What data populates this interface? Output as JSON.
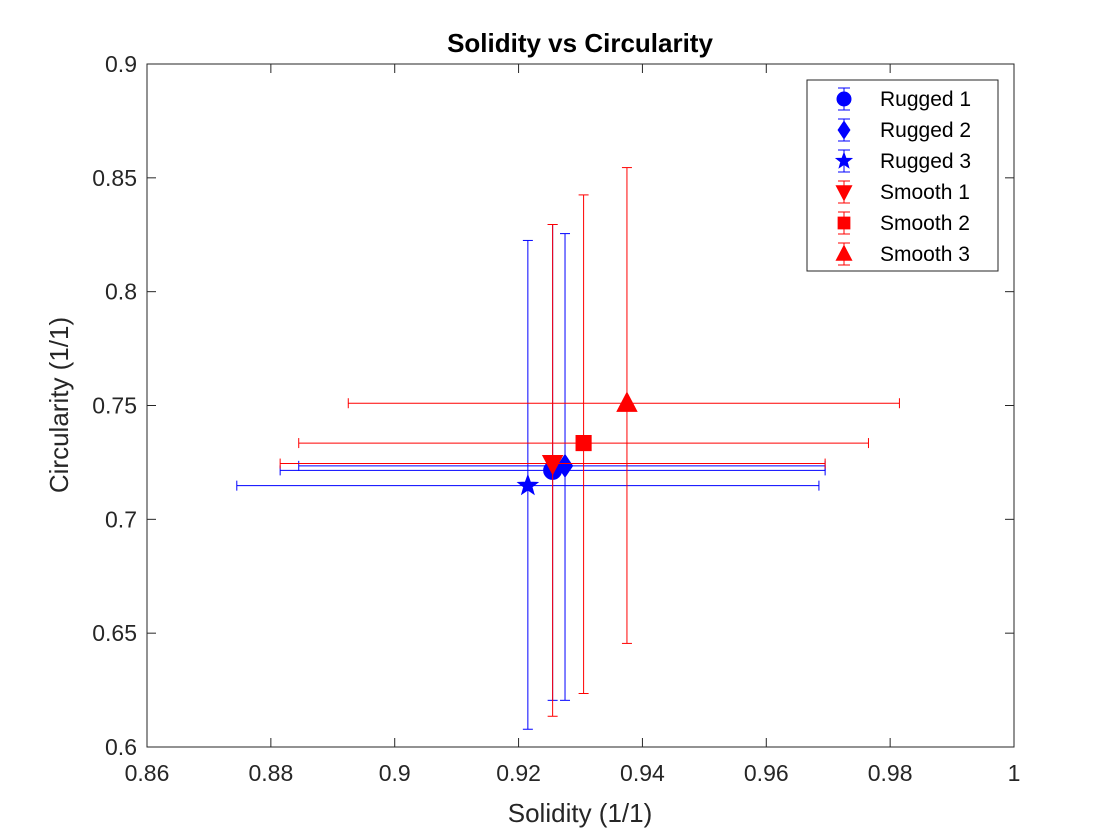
{
  "chart_data": {
    "type": "scatter",
    "title": "Solidity vs Circularity",
    "xlabel": "Solidity (1/1)",
    "ylabel": "Circularity (1/1)",
    "xlim": [
      0.86,
      1.0
    ],
    "ylim": [
      0.6,
      0.9
    ],
    "xticks": [
      "0.86",
      "0.88",
      "0.9",
      "0.92",
      "0.94",
      "0.96",
      "0.98",
      "1"
    ],
    "yticks": [
      "0.6",
      "0.65",
      "0.7",
      "0.75",
      "0.8",
      "0.85",
      "0.9"
    ],
    "xtick_values": [
      0.86,
      0.88,
      0.9,
      0.92,
      0.94,
      0.96,
      0.98,
      1.0
    ],
    "ytick_values": [
      0.6,
      0.65,
      0.7,
      0.75,
      0.8,
      0.85,
      0.9
    ],
    "grid": false,
    "legend_position": "top-right",
    "series": [
      {
        "name": "Rugged 1",
        "marker": "circle",
        "color": "#0000ff",
        "x": 0.9255,
        "y": 0.7215,
        "xerr": [
          0.8815,
          0.9695
        ],
        "yerr": [
          0.6205,
          0.8295
        ]
      },
      {
        "name": "Rugged 2",
        "marker": "diamond",
        "color": "#0000ff",
        "x": 0.9275,
        "y": 0.7235,
        "xerr": [
          0.8845,
          0.9695
        ],
        "yerr": [
          0.6205,
          0.8255
        ]
      },
      {
        "name": "Rugged 3",
        "marker": "star",
        "color": "#0000ff",
        "x": 0.9215,
        "y": 0.7148,
        "xerr": [
          0.8745,
          0.9685
        ],
        "yerr": [
          0.6078,
          0.8225
        ]
      },
      {
        "name": "Smooth 1",
        "marker": "triangle-down",
        "color": "#ff0000",
        "x": 0.9255,
        "y": 0.7245,
        "xerr": [
          0.8815,
          0.9695
        ],
        "yerr": [
          0.6135,
          0.8295
        ]
      },
      {
        "name": "Smooth 2",
        "marker": "square",
        "color": "#ff0000",
        "x": 0.9305,
        "y": 0.7335,
        "xerr": [
          0.8845,
          0.9765
        ],
        "yerr": [
          0.6235,
          0.8425
        ]
      },
      {
        "name": "Smooth 3",
        "marker": "triangle-up",
        "color": "#ff0000",
        "x": 0.9375,
        "y": 0.751,
        "xerr": [
          0.8925,
          0.9815
        ],
        "yerr": [
          0.6455,
          0.8545
        ]
      }
    ]
  }
}
